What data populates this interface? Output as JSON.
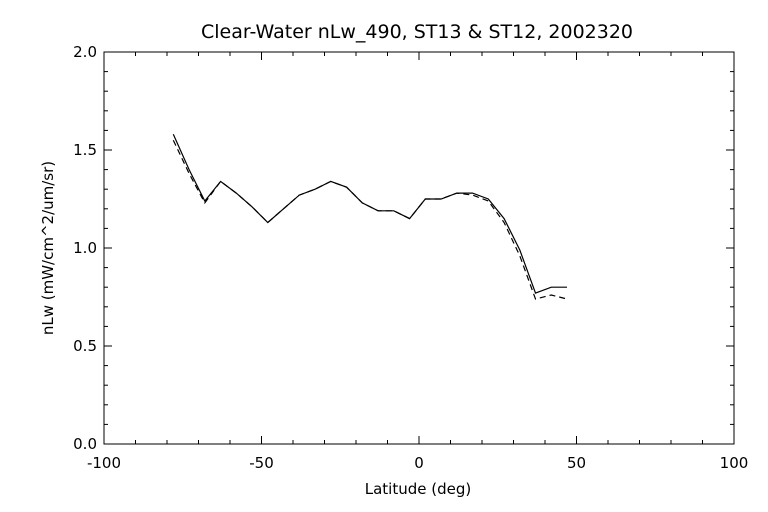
{
  "chart_data": {
    "type": "line",
    "title": "Clear-Water nLw_490, ST13 & ST12, 2002320",
    "xlabel": "Latitude (deg)",
    "ylabel": "nLw (mW/cm^2/um/sr)",
    "xlim": [
      -100,
      100
    ],
    "ylim": [
      0.0,
      2.0
    ],
    "x_ticks": [
      "-100",
      "-50",
      "0",
      "50",
      "100"
    ],
    "y_ticks": [
      "0.0",
      "0.5",
      "1.0",
      "1.5",
      "2.0"
    ],
    "grid": false,
    "legend": "none",
    "series": [
      {
        "style": "solid",
        "color": "#000000",
        "x": [
          -78,
          -73,
          -68,
          -63,
          -58,
          -53,
          -48,
          -43,
          -38,
          -33,
          -28,
          -23,
          -18,
          -13,
          -8,
          -3,
          2,
          7,
          12,
          17,
          22,
          27,
          32,
          37,
          42,
          47
        ],
        "y": [
          1.58,
          1.4,
          1.24,
          1.34,
          1.28,
          1.21,
          1.13,
          1.2,
          1.27,
          1.3,
          1.34,
          1.31,
          1.23,
          1.19,
          1.19,
          1.15,
          1.25,
          1.25,
          1.28,
          1.28,
          1.25,
          1.15,
          0.99,
          0.77,
          0.8,
          0.8
        ]
      },
      {
        "style": "dashed",
        "color": "#000000",
        "x": [
          -78,
          -73,
          -68,
          -63,
          -58,
          -53,
          -48,
          -43,
          -38,
          -33,
          -28,
          -23,
          -18,
          -13,
          -8,
          -3,
          2,
          7,
          12,
          17,
          22,
          27,
          32,
          37,
          42,
          47
        ],
        "y": [
          1.55,
          1.38,
          1.23,
          1.34,
          1.28,
          1.21,
          1.13,
          1.2,
          1.27,
          1.3,
          1.34,
          1.31,
          1.23,
          1.19,
          1.19,
          1.15,
          1.25,
          1.25,
          1.28,
          1.27,
          1.24,
          1.13,
          0.96,
          0.74,
          0.76,
          0.74
        ]
      }
    ]
  }
}
